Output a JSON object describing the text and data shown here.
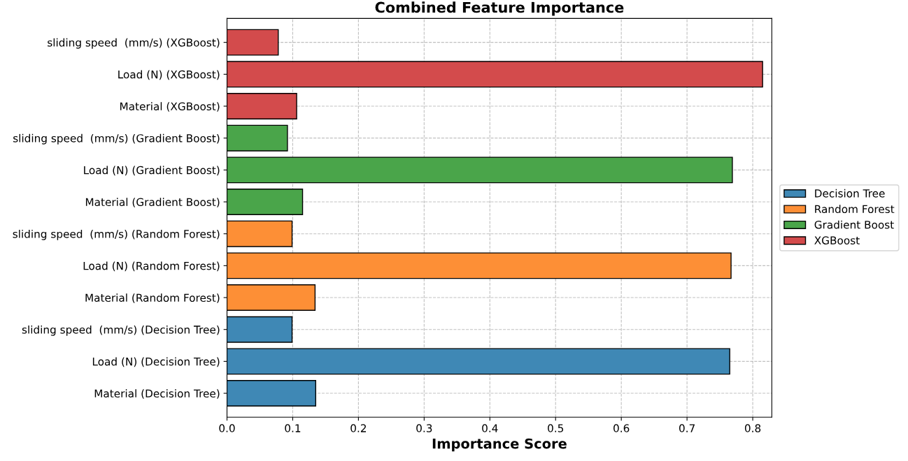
{
  "chart_data": {
    "type": "bar",
    "orientation": "horizontal",
    "title": "Combined Feature Importance",
    "xlabel": "Importance Score",
    "categories": [
      "sliding speed  (mm/s) (XGBoost)",
      "Load (N) (XGBoost)",
      "Material (XGBoost)",
      "sliding speed  (mm/s) (Gradient Boost)",
      "Load (N) (Gradient Boost)",
      "Material (Gradient Boost)",
      "sliding speed  (mm/s) (Random Forest)",
      "Load (N) (Random Forest)",
      "Material (Random Forest)",
      "sliding speed  (mm/s) (Decision Tree)",
      "Load (N) (Decision Tree)",
      "Material (Decision Tree)"
    ],
    "series": [
      {
        "name": "Decision Tree",
        "color": "#3f88b5",
        "values": [
          null,
          null,
          null,
          null,
          null,
          null,
          null,
          null,
          null,
          0.099,
          0.765,
          0.135
        ]
      },
      {
        "name": "Random Forest",
        "color": "#fd8f36",
        "values": [
          null,
          null,
          null,
          null,
          null,
          null,
          0.099,
          0.767,
          0.134,
          null,
          null,
          null
        ]
      },
      {
        "name": "Gradient Boost",
        "color": "#4aa54a",
        "values": [
          null,
          null,
          null,
          0.092,
          0.769,
          0.115,
          null,
          null,
          null,
          null,
          null,
          null
        ]
      },
      {
        "name": "XGBoost",
        "color": "#d34b4c",
        "values": [
          0.078,
          0.815,
          0.106,
          null,
          null,
          null,
          null,
          null,
          null,
          null,
          null,
          null
        ]
      }
    ],
    "xlim": [
      0,
      0.829
    ],
    "xticks": [
      {
        "value": 0,
        "label": "0.0"
      },
      0.1,
      0.2,
      0.3,
      0.4,
      0.5,
      0.6,
      0.7,
      0.8
    ],
    "grid": true,
    "line_style": "dashed",
    "legend": "right"
  }
}
